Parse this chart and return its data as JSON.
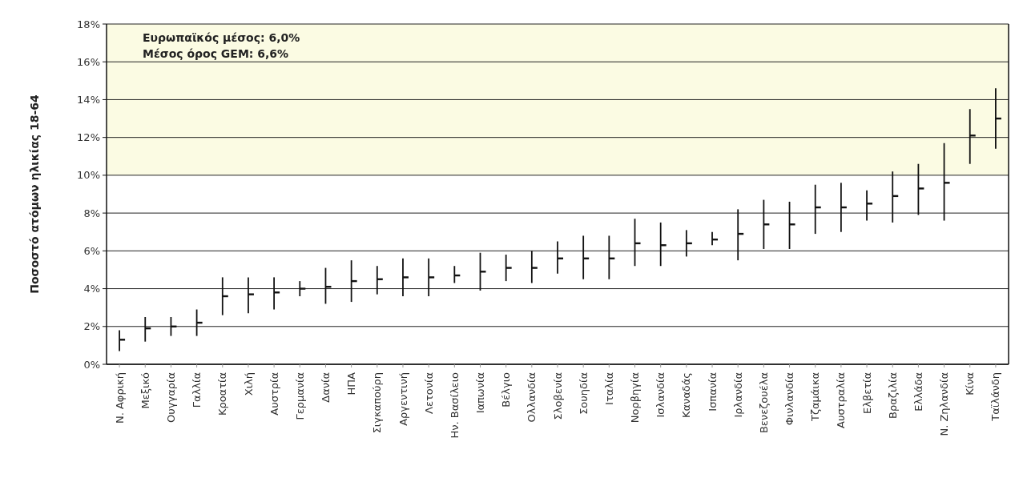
{
  "chart_data": {
    "type": "scatter",
    "ylabel": "Ποσοστό ατόμων ηλικίας 18-64",
    "annotations": [
      "Ευρωπαϊκός μέσος: 6,0%",
      "Μέσος όρος GEM: 6,6%"
    ],
    "categories": [
      "Ν. Αφρική",
      "Μεξικό",
      "Ουγγαρία",
      "Γαλλία",
      "Κροατία",
      "Χιλή",
      "Αυστρία",
      "Γερμανία",
      "Δανία",
      "ΗΠΑ",
      "Σιγκαπούρη",
      "Αργεντινή",
      "Λετονία",
      "Ην. Βασίλειο",
      "Ιαπωνία",
      "Βέλγιο",
      "Ολλανδία",
      "Σλοβενία",
      "Σουηδία",
      "Ιταλία",
      "Νορβηγία",
      "Ισλανδία",
      "Καναδάς",
      "Ισπανία",
      "Ιρλανδία",
      "Βενεζουέλα",
      "Φινλανδία",
      "Τζαμάικα",
      "Αυστραλία",
      "Ελβετία",
      "Βραζιλία",
      "Ελλάδα",
      "Ν. Ζηλανδία",
      "Κίνα",
      "Ταϊλάνδη"
    ],
    "series": [
      {
        "color": "#111111",
        "values": [
          1.3,
          1.9,
          2.0,
          2.2,
          3.6,
          3.7,
          3.8,
          4.0,
          4.1,
          4.4,
          4.5,
          4.6,
          4.6,
          4.7,
          4.9,
          5.1,
          5.1,
          5.6,
          5.6,
          5.6,
          6.4,
          6.3,
          6.4,
          6.6,
          6.9,
          7.4,
          7.4,
          8.3,
          8.3,
          8.5,
          8.9,
          9.3,
          9.6,
          12.1,
          13.0
        ],
        "errors": [
          [
            0.7,
            1.8
          ],
          [
            1.2,
            2.5
          ],
          [
            1.5,
            2.5
          ],
          [
            1.5,
            2.9
          ],
          [
            2.6,
            4.6
          ],
          [
            2.7,
            4.6
          ],
          [
            2.9,
            4.6
          ],
          [
            3.6,
            4.4
          ],
          [
            3.2,
            5.1
          ],
          [
            3.3,
            5.5
          ],
          [
            3.7,
            5.2
          ],
          [
            3.6,
            5.6
          ],
          [
            3.6,
            5.6
          ],
          [
            4.3,
            5.2
          ],
          [
            3.9,
            5.9
          ],
          [
            4.4,
            5.8
          ],
          [
            4.3,
            6.0
          ],
          [
            4.8,
            6.5
          ],
          [
            4.5,
            6.8
          ],
          [
            4.5,
            6.8
          ],
          [
            5.2,
            7.7
          ],
          [
            5.2,
            7.5
          ],
          [
            5.7,
            7.1
          ],
          [
            6.3,
            7.0
          ],
          [
            5.5,
            8.2
          ],
          [
            6.1,
            8.7
          ],
          [
            6.1,
            8.6
          ],
          [
            6.9,
            9.5
          ],
          [
            7.0,
            9.6
          ],
          [
            7.6,
            9.2
          ],
          [
            7.5,
            10.2
          ],
          [
            7.9,
            10.6
          ],
          [
            7.6,
            11.7
          ],
          [
            10.6,
            13.5
          ],
          [
            11.4,
            14.6
          ]
        ]
      }
    ],
    "ylim": [
      0,
      18
    ],
    "yticks": [
      {
        "value": 0,
        "label": "0%"
      },
      {
        "value": 2,
        "label": "2%"
      },
      {
        "value": 4,
        "label": "4%"
      },
      {
        "value": 6,
        "label": "6%"
      },
      {
        "value": 8,
        "label": "8%"
      },
      {
        "value": 10,
        "label": "10%"
      },
      {
        "value": 12,
        "label": "12%"
      },
      {
        "value": 14,
        "label": "14%"
      },
      {
        "value": 16,
        "label": "16%"
      },
      {
        "value": 18,
        "label": "18%"
      }
    ],
    "grid": "y",
    "bands": [
      {
        "axis": "y",
        "from": 10,
        "to": 18,
        "color": "#fbfbe3"
      }
    ]
  }
}
